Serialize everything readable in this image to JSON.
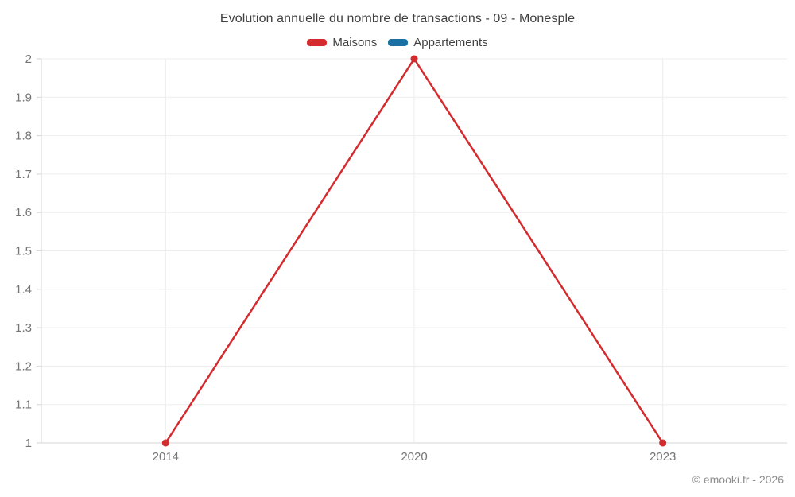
{
  "title": "Evolution annuelle du nombre de transactions - 09 - Monesple",
  "legend": {
    "items": [
      {
        "label": "Maisons",
        "color": "#d42b2e"
      },
      {
        "label": "Appartements",
        "color": "#1a6fa3"
      }
    ]
  },
  "footer": {
    "copyright": "© emooki.fr - 2026"
  },
  "chart_data": {
    "type": "line",
    "title": "Evolution annuelle du nombre de transactions - 09 - Monesple",
    "categories": [
      "2014",
      "2020",
      "2023"
    ],
    "series": [
      {
        "name": "Maisons",
        "color": "#d42b2e",
        "values": [
          1,
          2,
          1
        ]
      },
      {
        "name": "Appartements",
        "color": "#1a6fa3",
        "values": []
      }
    ],
    "xlabel": "",
    "ylabel": "",
    "ylim": [
      1,
      2
    ],
    "ytick_step": 0.1,
    "ytick_labels": [
      "1",
      "1.1",
      "1.2",
      "1.3",
      "1.4",
      "1.5",
      "1.6",
      "1.7",
      "1.8",
      "1.9",
      "2"
    ],
    "grid": true,
    "legend_position": "top",
    "colors": {
      "grid_line": "#ededed",
      "axis_line": "#d6d6d6",
      "tick_label": "#757575"
    }
  }
}
